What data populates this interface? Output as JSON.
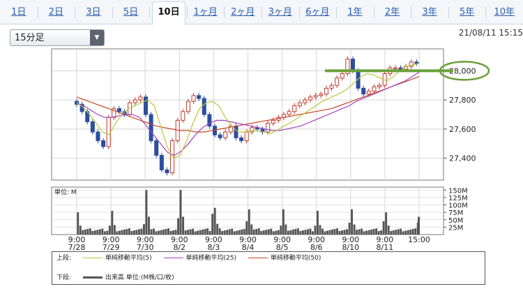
{
  "tabs": [
    {
      "label": "1日",
      "active": false
    },
    {
      "label": "2日",
      "active": false
    },
    {
      "label": "3日",
      "active": false
    },
    {
      "label": "5日",
      "active": false
    },
    {
      "label": "10日",
      "active": true
    },
    {
      "label": "1ヶ月",
      "active": false
    },
    {
      "label": "2ヶ月",
      "active": false
    },
    {
      "label": "3ヶ月",
      "active": false
    },
    {
      "label": "6ヶ月",
      "active": false
    },
    {
      "label": "1年",
      "active": false
    },
    {
      "label": "2年",
      "active": false
    },
    {
      "label": "3年",
      "active": false
    },
    {
      "label": "5年",
      "active": false
    },
    {
      "label": "10年",
      "active": false
    }
  ],
  "interval_select": {
    "value": "15分足"
  },
  "timestamp": "21/08/11 15:15",
  "colors": {
    "ma5": "#b8c83a",
    "ma25": "#a43fbf",
    "ma50": "#c8462a",
    "candle": "#2c4ea0",
    "volume": "#555555",
    "annotation": "#6aa03a"
  },
  "chart_data": {
    "type": "candlestick",
    "price_panel": {
      "ylim": [
        27250,
        28150
      ],
      "yticks": [
        27400,
        27600,
        27800,
        28000
      ],
      "ytick_labels": [
        "27,400",
        "27,600",
        "27,800",
        "28,000"
      ],
      "annotation": {
        "type": "horizontal-line-with-circle",
        "value": 28000,
        "label": "28,000"
      },
      "approx_close_series": [
        27770,
        27720,
        27650,
        27580,
        27520,
        27480,
        27680,
        27740,
        27720,
        27700,
        27780,
        27800,
        27820,
        27700,
        27520,
        27420,
        27320,
        27300,
        27520,
        27660,
        27720,
        27790,
        27830,
        27810,
        27700,
        27620,
        27560,
        27540,
        27580,
        27620,
        27540,
        27520,
        27580,
        27610,
        27600,
        27580,
        27640,
        27660,
        27680,
        27700,
        27720,
        27760,
        27780,
        27800,
        27820,
        27830,
        27840,
        27880,
        27900,
        27950,
        27980,
        28080,
        28000,
        27880,
        27840,
        27860,
        27890,
        27900,
        27980,
        28020,
        28020,
        28010,
        28030,
        28060,
        28050
      ],
      "ma5_approx": [
        27780,
        27750,
        27700,
        27640,
        27580,
        27560,
        27640,
        27700,
        27740,
        27760,
        27780,
        27800,
        27760,
        27620,
        27480,
        27400,
        27420,
        27520,
        27640,
        27740,
        27780,
        27790,
        27760,
        27680,
        27620,
        27580,
        27580,
        27590,
        27590,
        27580,
        27570,
        27590,
        27620,
        27640,
        27670,
        27700,
        27730,
        27760,
        27790,
        27810,
        27830,
        27850,
        27880,
        27920,
        27960,
        27980,
        27970,
        27950,
        27930,
        27960,
        28000,
        28030,
        28040,
        28050
      ],
      "ma25_approx": [
        27780,
        27760,
        27730,
        27700,
        27680,
        27680,
        27690,
        27700,
        27700,
        27680,
        27620,
        27560,
        27500,
        27440,
        27420,
        27450,
        27500,
        27560,
        27610,
        27640,
        27660,
        27660,
        27650,
        27640,
        27630,
        27620,
        27610,
        27600,
        27590,
        27590,
        27600,
        27610,
        27620,
        27640,
        27660,
        27680,
        27700,
        27720,
        27740,
        27760,
        27790,
        27810,
        27830,
        27850,
        27870,
        27890,
        27910,
        27930,
        27960,
        27990
      ],
      "ma50_approx": [
        27820,
        27800,
        27780,
        27760,
        27740,
        27720,
        27700,
        27680,
        27660,
        27640,
        27620,
        27610,
        27600,
        27590,
        27590,
        27580,
        27580,
        27590,
        27600,
        27610,
        27620,
        27630,
        27640,
        27650,
        27660,
        27670,
        27680,
        27690,
        27700,
        27710,
        27720,
        27730,
        27740,
        27760,
        27780,
        27800,
        27820,
        27840,
        27860,
        27880,
        27900,
        27920,
        27940,
        27960
      ]
    },
    "volume_panel": {
      "unit_label": "単位: M",
      "ylim": [
        0,
        160
      ],
      "yticks": [
        25,
        50,
        75,
        100,
        125,
        150
      ],
      "ytick_labels": [
        "25M",
        "50M",
        "75M",
        "100M",
        "125M",
        "150M"
      ],
      "session_open_volumes": [
        75,
        80,
        150,
        150,
        90,
        85,
        85,
        80,
        85,
        75,
        60
      ],
      "session_close_volumes": [
        30,
        35,
        55,
        70,
        45,
        30,
        30,
        40,
        45,
        40,
        60
      ],
      "typical_intraday_volume": 15
    },
    "x_tick_labels": [
      {
        "time": "9:00",
        "date": "7/28"
      },
      {
        "time": "9:00",
        "date": "7/29"
      },
      {
        "time": "9:00",
        "date": "7/30"
      },
      {
        "time": "9:00",
        "date": "8/2"
      },
      {
        "time": "9:00",
        "date": "8/3"
      },
      {
        "time": "9:00",
        "date": "8/4"
      },
      {
        "time": "9:00",
        "date": "8/5"
      },
      {
        "time": "9:00",
        "date": "8/6"
      },
      {
        "time": "9:00",
        "date": "8/10"
      },
      {
        "time": "9:00",
        "date": "8/11"
      },
      {
        "time": "15:00",
        "date": ""
      }
    ]
  },
  "legend": {
    "upper_label": "上段:",
    "ma5_label": "単純移動平均(5)",
    "ma25_label": "単純移動平均(25)",
    "ma50_label": "単純移動平均(50)",
    "lower_label": "下段:",
    "volume_label": "出来高 単位:(M株/口/枚)"
  }
}
